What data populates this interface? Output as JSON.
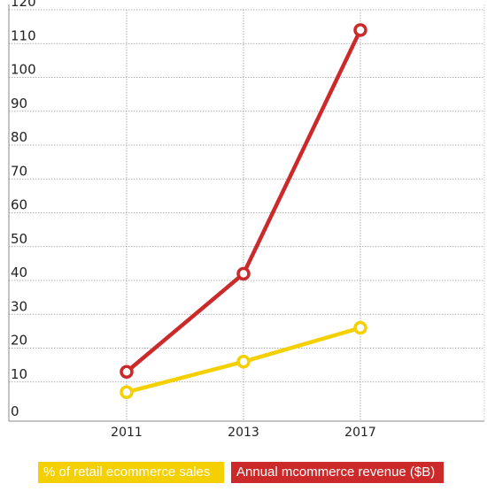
{
  "chart_data": {
    "type": "line",
    "x": [
      "2011",
      "2013",
      "2017"
    ],
    "series": [
      {
        "name": "% of retail ecommerce sales",
        "color": "#f5d000",
        "values": [
          7,
          16,
          26
        ]
      },
      {
        "name": "Annual mcommerce revenue ($B)",
        "color": "#cc2a2a",
        "values": [
          13,
          42,
          114
        ]
      }
    ],
    "yticks": [
      0,
      10,
      20,
      30,
      40,
      50,
      60,
      70,
      80,
      90,
      100,
      110,
      120
    ],
    "ylim": [
      0,
      120
    ],
    "grid": true,
    "legend_position": "bottom"
  },
  "legend": [
    {
      "label": "% of retail ecommerce sales",
      "color": "#f5d000"
    },
    {
      "label": "Annual mcommerce revenue ($B)",
      "color": "#cc2a2a"
    }
  ]
}
